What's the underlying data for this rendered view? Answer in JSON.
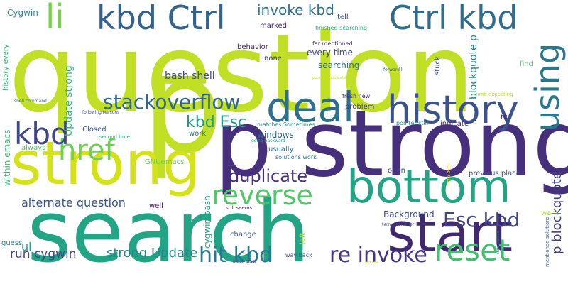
{
  "words": [
    {
      "text": "question",
      "color": "#c1df25"
    },
    {
      "text": "p strong",
      "color": "#47307b"
    },
    {
      "text": "search",
      "color": "#22a485"
    },
    {
      "text": "p",
      "color": "#c1df25"
    },
    {
      "text": "strong",
      "color": "#d4e21b"
    },
    {
      "text": "bottom",
      "color": "#22a485"
    },
    {
      "text": "start",
      "color": "#40296f"
    },
    {
      "text": "kbd Ctrl",
      "color": "#33638d"
    },
    {
      "text": "Ctrl kbd",
      "color": "#2f6c8e"
    },
    {
      "text": "li",
      "color": "#77d04f"
    },
    {
      "text": "deal",
      "color": "#2d708e"
    },
    {
      "text": "history",
      "color": "#3b528b"
    },
    {
      "text": "using",
      "color": "#2a788e"
    },
    {
      "text": "reset",
      "color": "#44bf70"
    },
    {
      "text": "href",
      "color": "#70cf57"
    },
    {
      "text": "kbd",
      "color": "#3f4789"
    },
    {
      "text": "reverse",
      "color": "#52c569"
    },
    {
      "text": "stackoverflow",
      "color": "#31668e"
    },
    {
      "text": "duplicate",
      "color": "#472d7b"
    },
    {
      "text": "re invoke",
      "color": "#46337f"
    },
    {
      "text": "hit kbd",
      "color": "#2a788e"
    },
    {
      "text": "Esc kbd",
      "color": "#414487"
    },
    {
      "text": "kbd Esc",
      "color": "#1e9b8a"
    },
    {
      "text": "alternate question",
      "color": "#3b528b"
    },
    {
      "text": "strong Update",
      "color": "#24878e"
    },
    {
      "text": "run cygwin",
      "color": "#404688"
    },
    {
      "text": "invoke kbd",
      "color": "#2c728e"
    },
    {
      "text": "blockquote p",
      "color": "#25858e"
    },
    {
      "text": "p blockquote",
      "color": "#433e85"
    },
    {
      "text": "Update strong",
      "color": "#31b57b"
    },
    {
      "text": "bash shell",
      "color": "#3e4989"
    },
    {
      "text": "within emacs",
      "color": "#3aba76"
    },
    {
      "text": "history every",
      "color": "#34b679"
    },
    {
      "text": "Cygwin",
      "color": "#23898e"
    },
    {
      "text": "ul",
      "color": "#1f9e89"
    },
    {
      "text": "guess",
      "color": "#26828e"
    },
    {
      "text": "cygwin bash",
      "color": "#1f9f88"
    },
    {
      "text": "Background",
      "color": "#3e4a89"
    },
    {
      "text": "windows",
      "color": "#30698e"
    },
    {
      "text": "every time",
      "color": "#414487"
    },
    {
      "text": "searching",
      "color": "#2d718e"
    },
    {
      "text": "behavior",
      "color": "#481f70"
    },
    {
      "text": "none",
      "color": "#46307e"
    },
    {
      "text": "problem",
      "color": "#46337e"
    },
    {
      "text": "indicate",
      "color": "#482979"
    },
    {
      "text": "Closed",
      "color": "#3b518b"
    },
    {
      "text": "usually",
      "color": "#2b748e"
    },
    {
      "text": "marked",
      "color": "#482878"
    },
    {
      "text": "tell",
      "color": "#3e4c8a"
    },
    {
      "text": "stuck",
      "color": "#3e4a89"
    },
    {
      "text": "find",
      "color": "#4fc46a"
    },
    {
      "text": "re",
      "color": "#481f70"
    },
    {
      "text": "GNUemacs",
      "color": "#6ccd5a"
    },
    {
      "text": "always",
      "color": "#5ac864"
    },
    {
      "text": "work",
      "color": "#2b758e"
    },
    {
      "text": "well",
      "color": "#471365"
    },
    {
      "text": "change",
      "color": "#3d4d8a"
    },
    {
      "text": "open",
      "color": "#414487"
    },
    {
      "text": "previous place",
      "color": "#3d4e8a"
    },
    {
      "text": "want",
      "color": "#addc30"
    },
    {
      "text": "left",
      "color": "#addc30"
    },
    {
      "text": "far mentioned",
      "color": "#46327e"
    },
    {
      "text": "finished searching",
      "color": "#27ad81"
    },
    {
      "text": "fresh new",
      "color": "#482576"
    },
    {
      "text": "matches Sometimes",
      "color": "#25848e"
    },
    {
      "text": "pointer still",
      "color": "#20928c"
    },
    {
      "text": "solutions work",
      "color": "#2c728e"
    },
    {
      "text": "second time",
      "color": "#26ad81"
    },
    {
      "text": "going backward",
      "color": "#1fa187"
    },
    {
      "text": "still seems",
      "color": "#481a6c"
    },
    {
      "text": "time expecting",
      "color": "#bddf26"
    },
    {
      "text": "mentioned solutions",
      "color": "#365c8d"
    },
    {
      "text": "terminal rather",
      "color": "#404688"
    },
    {
      "text": "way back",
      "color": "#38598c"
    },
    {
      "text": "initial state",
      "color": "#3f4788"
    },
    {
      "text": "potential duplicate",
      "color": "#c0df25"
    },
    {
      "text": "forward li",
      "color": "#35608d"
    },
    {
      "text": "shell command",
      "color": "#2c738e"
    },
    {
      "text": "following reasons",
      "color": "#3d4e8a"
    },
    {
      "text": "simply going",
      "color": "#fde725"
    },
    {
      "text": "state instead",
      "color": "#2a768e"
    },
    {
      "text": "red one",
      "color": "#c8e020"
    }
  ]
}
